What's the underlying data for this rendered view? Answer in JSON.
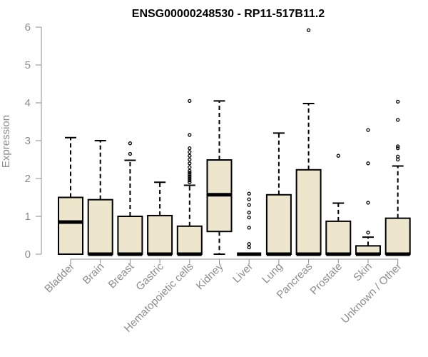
{
  "chart_data": {
    "type": "boxplot",
    "title": "ENSG00000248530 - RP11-517B11.2",
    "xlabel": "",
    "ylabel": "Expression",
    "ylim": [
      0,
      6
    ],
    "yticks": [
      0,
      1,
      2,
      3,
      4,
      5,
      6
    ],
    "grid": false,
    "colors": {
      "box_fill": "#ede6cc",
      "stroke": "#000000",
      "axis": "#8c8c8c"
    },
    "categories": [
      "Bladder",
      "Brain",
      "Breast",
      "Gastric",
      "Hematopoietic cells",
      "Kidney",
      "Liver",
      "Lung",
      "Pancreas",
      "Prostate",
      "Skin",
      "Unknown / Other"
    ],
    "boxes": [
      {
        "min": 0,
        "q1": 0,
        "median": 0.85,
        "q3": 1.5,
        "max": 3.08,
        "outliers": []
      },
      {
        "min": 0,
        "q1": 0,
        "median": 0,
        "q3": 1.44,
        "max": 3.0,
        "outliers": []
      },
      {
        "min": 0,
        "q1": 0,
        "median": 0,
        "q3": 1.0,
        "max": 2.48,
        "outliers": [
          2.65,
          2.93
        ]
      },
      {
        "min": 0,
        "q1": 0,
        "median": 0,
        "q3": 1.02,
        "max": 1.9,
        "outliers": []
      },
      {
        "min": 0,
        "q1": 0,
        "median": 0,
        "q3": 0.74,
        "max": 1.82,
        "outliers": [
          1.9,
          1.95,
          2.0,
          2.05,
          2.1,
          2.15,
          2.2,
          2.3,
          2.4,
          2.5,
          2.6,
          2.7,
          2.8,
          3.15,
          4.05
        ]
      },
      {
        "min": 0,
        "q1": 0.6,
        "median": 1.57,
        "q3": 2.49,
        "max": 4.05,
        "outliers": []
      },
      {
        "min": 0,
        "q1": 0,
        "median": 0,
        "q3": 0,
        "max": 0,
        "outliers": [
          0.18,
          0.27,
          0.7,
          0.97,
          1.1,
          1.3,
          1.45,
          1.6
        ]
      },
      {
        "min": 0,
        "q1": 0,
        "median": 0,
        "q3": 1.57,
        "max": 3.2,
        "outliers": []
      },
      {
        "min": 0,
        "q1": 0,
        "median": 0,
        "q3": 2.23,
        "max": 3.98,
        "outliers": [
          5.92
        ]
      },
      {
        "min": 0,
        "q1": 0,
        "median": 0,
        "q3": 0.87,
        "max": 1.35,
        "outliers": [
          2.6
        ]
      },
      {
        "min": 0,
        "q1": 0,
        "median": 0,
        "q3": 0.22,
        "max": 0.45,
        "outliers": [
          0.57,
          1.36,
          2.4,
          3.28
        ]
      },
      {
        "min": 0,
        "q1": 0,
        "median": 0,
        "q3": 0.95,
        "max": 2.33,
        "outliers": [
          2.5,
          2.58,
          2.8,
          2.85,
          3.55,
          4.03
        ]
      }
    ]
  }
}
